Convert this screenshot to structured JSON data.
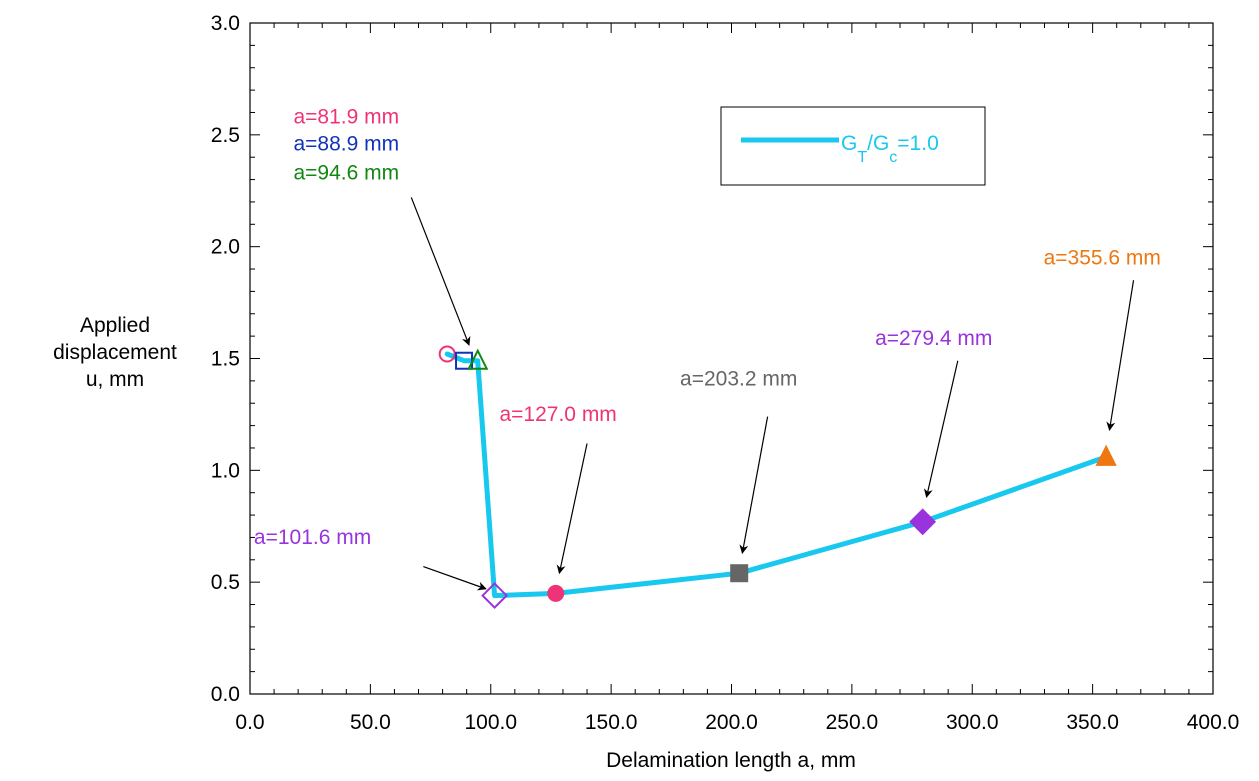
{
  "chart_data": {
    "type": "line",
    "xlabel": "Delamination length a, mm",
    "ylabel": [
      "Applied",
      "displacement",
      "u, mm"
    ],
    "xlim": [
      0,
      400
    ],
    "ylim": [
      0,
      3.0
    ],
    "x_ticks": [
      "0.0",
      "50.0",
      "100.0",
      "150.0",
      "200.0",
      "250.0",
      "300.0",
      "350.0",
      "400.0"
    ],
    "y_ticks": [
      "0.0",
      "0.5",
      "1.0",
      "1.5",
      "2.0",
      "2.5",
      "3.0"
    ],
    "grid": false,
    "legend": {
      "position": "top-right",
      "label_main": "G",
      "label_sub1": "T",
      "label_mid": "/G",
      "label_sub2": "c",
      "label_end": "=1.0"
    },
    "series": [
      {
        "name": "GT/Gc=1.0",
        "color": "#18c8ee",
        "x": [
          81.9,
          88.9,
          94.6,
          101.6,
          127.0,
          203.2,
          279.4,
          355.6
        ],
        "y": [
          1.52,
          1.49,
          1.49,
          0.44,
          0.45,
          0.54,
          0.77,
          1.06
        ]
      }
    ],
    "markers": [
      {
        "x": 81.9,
        "y": 1.52,
        "shape": "circle-open",
        "color": "#ee3377"
      },
      {
        "x": 88.9,
        "y": 1.49,
        "shape": "square-open",
        "color": "#1133bb"
      },
      {
        "x": 94.6,
        "y": 1.49,
        "shape": "triangle-open",
        "color": "#118811"
      },
      {
        "x": 101.6,
        "y": 0.44,
        "shape": "diamond-open",
        "color": "#9933dd"
      },
      {
        "x": 127.0,
        "y": 0.45,
        "shape": "circle-filled",
        "color": "#ee3377"
      },
      {
        "x": 203.2,
        "y": 0.54,
        "shape": "square-filled",
        "color": "#666666"
      },
      {
        "x": 279.4,
        "y": 0.77,
        "shape": "diamond-filled",
        "color": "#9933dd"
      },
      {
        "x": 355.6,
        "y": 1.06,
        "shape": "triangle-filled",
        "color": "#ee7711"
      }
    ],
    "annotations": [
      {
        "text": "a=81.9 mm",
        "color": "#ee3377",
        "tx": 40,
        "ty": 2.55
      },
      {
        "text": "a=88.9 mm",
        "color": "#1133bb",
        "tx": 40,
        "ty": 2.43
      },
      {
        "text": "a=94.6 mm",
        "color": "#118811",
        "tx": 40,
        "ty": 2.3,
        "arrow_from": [
          67,
          2.22
        ],
        "arrow_to": [
          91,
          1.56
        ]
      },
      {
        "text": "a=127.0 mm",
        "color": "#ee3377",
        "tx": 128,
        "ty": 1.22,
        "arrow_from": [
          140,
          1.12
        ],
        "arrow_to": [
          128.5,
          0.54
        ]
      },
      {
        "text": "a=203.2 mm",
        "color": "#666666",
        "tx": 203,
        "ty": 1.38,
        "arrow_from": [
          215,
          1.24
        ],
        "arrow_to": [
          204.5,
          0.63
        ]
      },
      {
        "text": "a=279.4 mm",
        "color": "#9933dd",
        "tx": 284,
        "ty": 1.56,
        "arrow_from": [
          294,
          1.49
        ],
        "arrow_to": [
          281,
          0.88
        ]
      },
      {
        "text": "a=355.6 mm",
        "color": "#ee7711",
        "tx": 354,
        "ty": 1.92,
        "arrow_from": [
          367,
          1.85
        ],
        "arrow_to": [
          357,
          1.18
        ]
      },
      {
        "text": "a=101.6 mm",
        "color": "#9933dd",
        "tx": 26,
        "ty": 0.67,
        "arrow_from": [
          72,
          0.57
        ],
        "arrow_to": [
          98,
          0.47
        ]
      }
    ]
  }
}
